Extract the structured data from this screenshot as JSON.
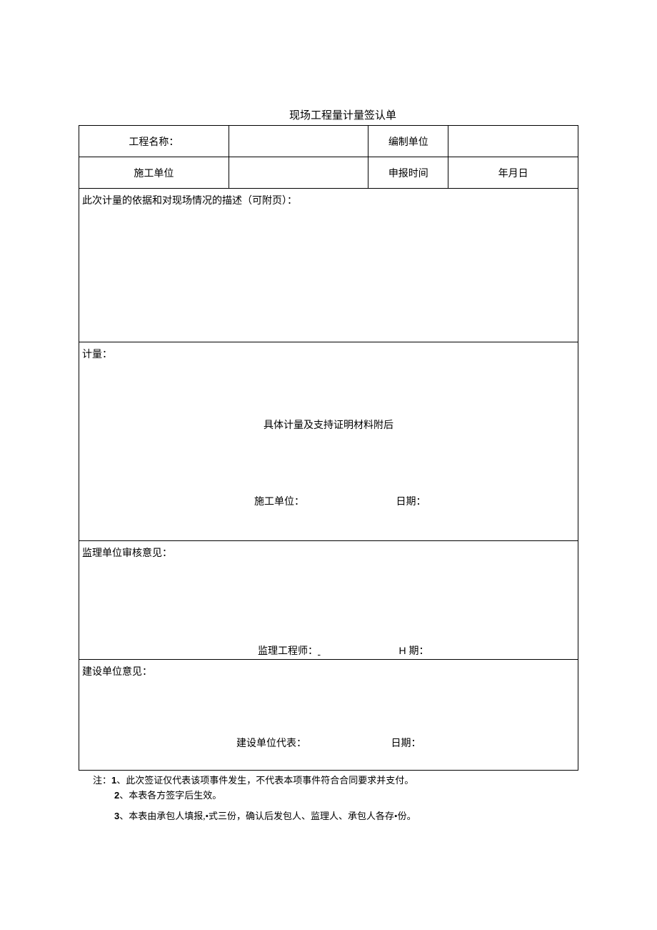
{
  "title": "现场工程量计量签认单",
  "row1": {
    "label1": "工程名称：",
    "label2": "编制单位"
  },
  "row2": {
    "label1": "施工单位",
    "label2": "申报时间",
    "value2": "年月日"
  },
  "description": {
    "label": "此次计量的依据和对现场情况的描述（可附页）："
  },
  "measurement": {
    "label": "计量：",
    "center_text": "具体计量及支持证明材料附后",
    "sign_unit": "施工单位：",
    "sign_date": "日期："
  },
  "supervisor": {
    "label": "监理单位审核意见：",
    "sign_unit": "监理工程师：",
    "sign_date_h": "H ",
    "sign_date_cn": "期："
  },
  "builder": {
    "label": "建设单位意见：",
    "sign_unit": "建设单位代表：",
    "sign_date": "日期："
  },
  "notes": {
    "prefix": "注：",
    "n1_num": "1",
    "n1_text": "、此次签证仅代表该项事件发生，不代表本项事件符合合同要求并支付。",
    "n2_num": "2",
    "n2_text": "、本表各方签字后生效。",
    "n3_num": "3",
    "n3_text": "、本表由承包人填报,•式三份，确认后发包人、监理人、承包人各存•份。"
  }
}
